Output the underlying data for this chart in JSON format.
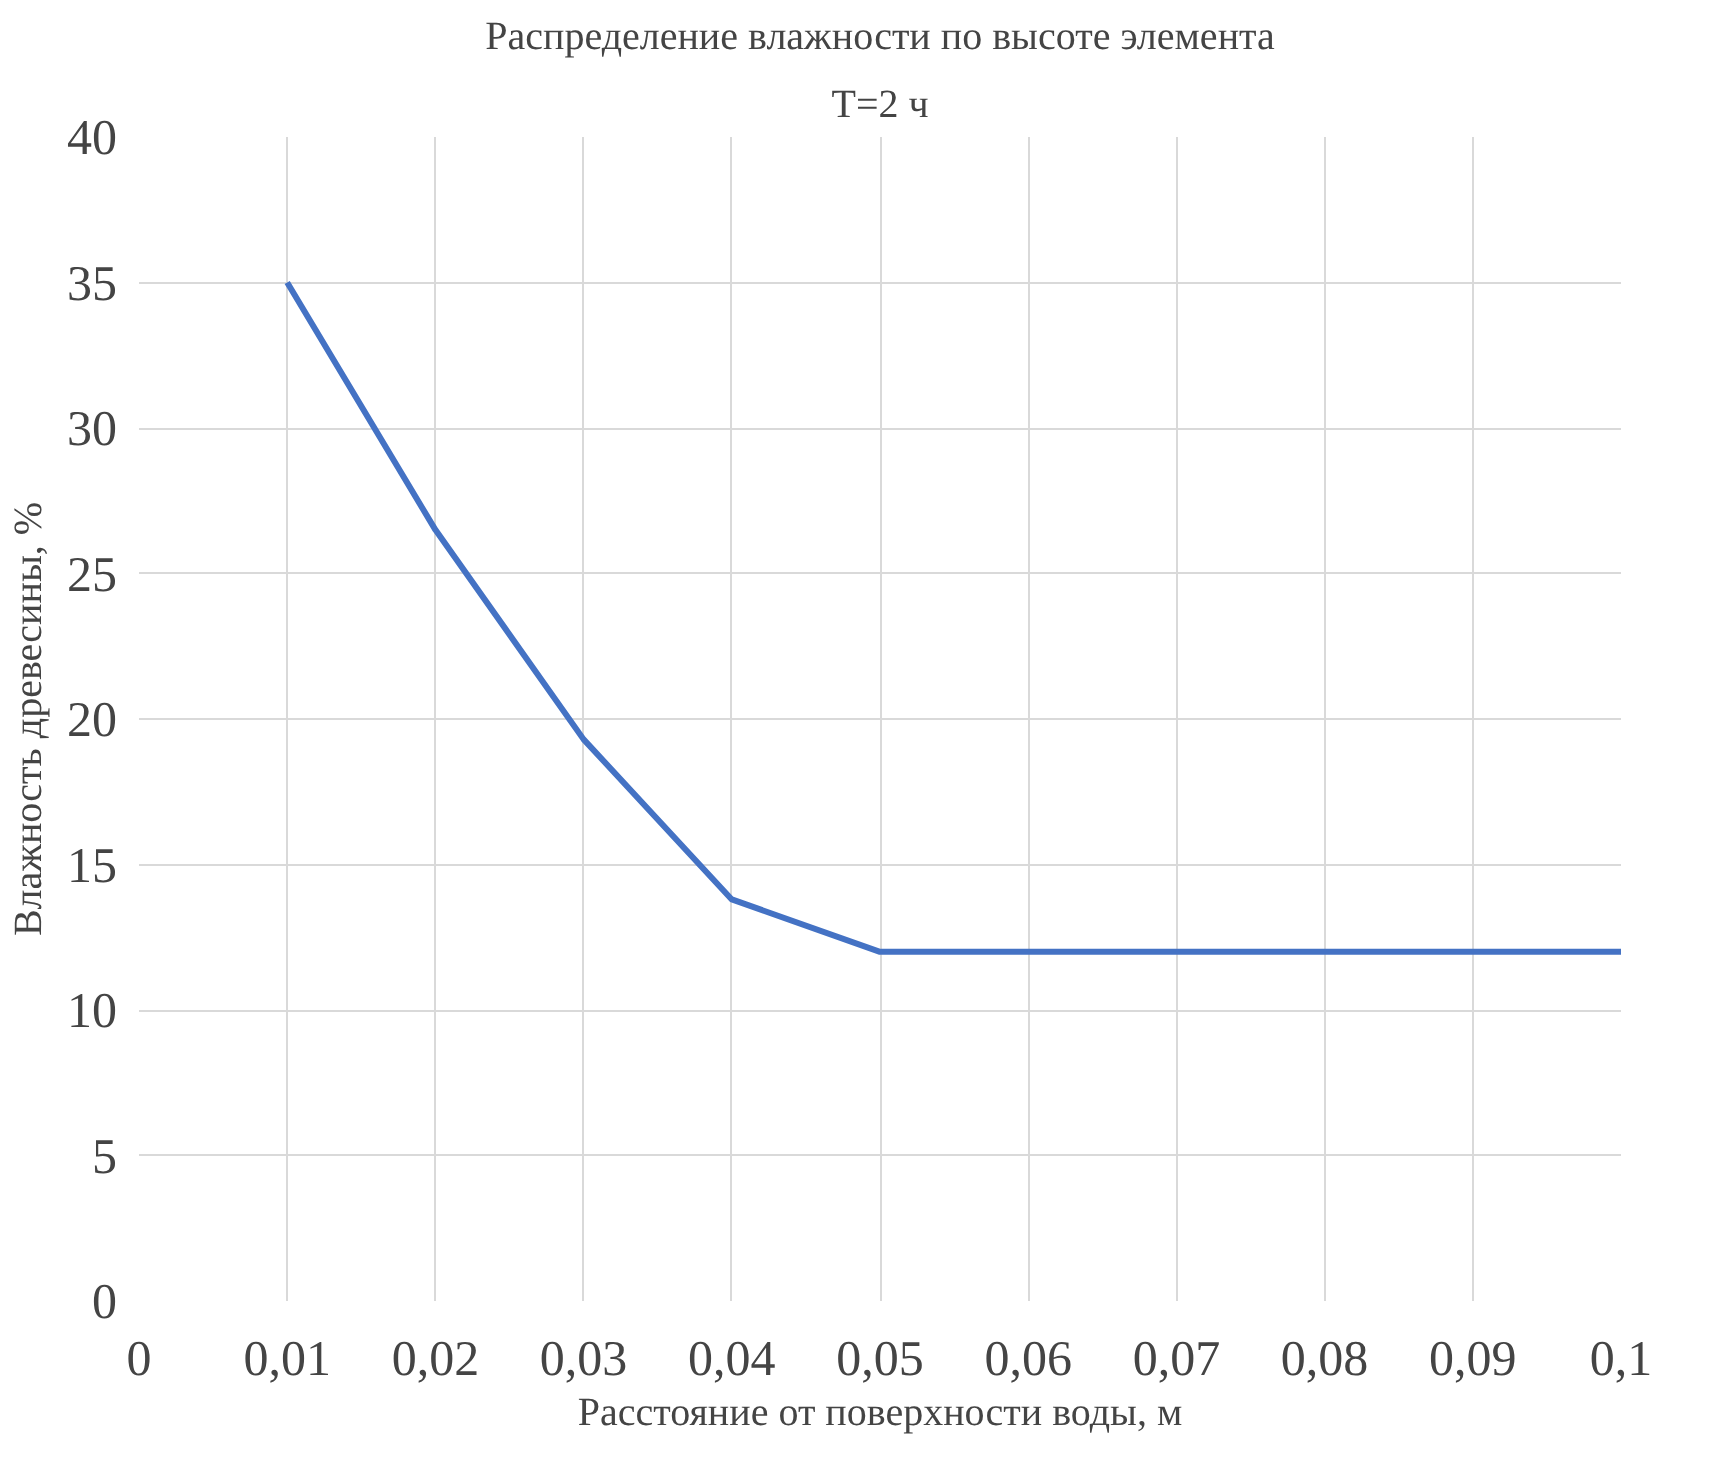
{
  "chart_data": {
    "type": "line",
    "title": "Распределение влажности по высоте элемента",
    "subtitle": "T=2 ч",
    "xlabel": "Расстояние от поверхности воды, м",
    "ylabel": "Влажность древесины, %",
    "x": [
      0.01,
      0.02,
      0.03,
      0.04,
      0.05,
      0.06,
      0.07,
      0.08,
      0.09,
      0.1
    ],
    "series": [
      {
        "color": "#4472c4",
        "values": [
          35,
          26.5,
          19.3,
          13.8,
          12,
          12,
          12,
          12,
          12,
          12
        ]
      }
    ],
    "xlim": [
      0,
      0.1
    ],
    "xticks": [
      0,
      {
        "value": 0.01,
        "label": "0,01"
      },
      {
        "value": 0.02,
        "label": "0,02"
      },
      {
        "value": 0.03,
        "label": "0,03"
      },
      {
        "value": 0.04,
        "label": "0,04"
      },
      {
        "value": 0.05,
        "label": "0,05"
      },
      {
        "value": 0.06,
        "label": "0,06"
      },
      {
        "value": 0.07,
        "label": "0,07"
      },
      {
        "value": 0.08,
        "label": "0,08"
      },
      {
        "value": 0.09,
        "label": "0,09"
      },
      {
        "value": 0.1,
        "label": "0,1"
      }
    ],
    "ylim": [
      0,
      40
    ],
    "yticks": [
      0,
      5,
      10,
      15,
      20,
      25,
      30,
      35,
      40
    ],
    "grid": true,
    "marker": "none",
    "line_style": "solid"
  }
}
